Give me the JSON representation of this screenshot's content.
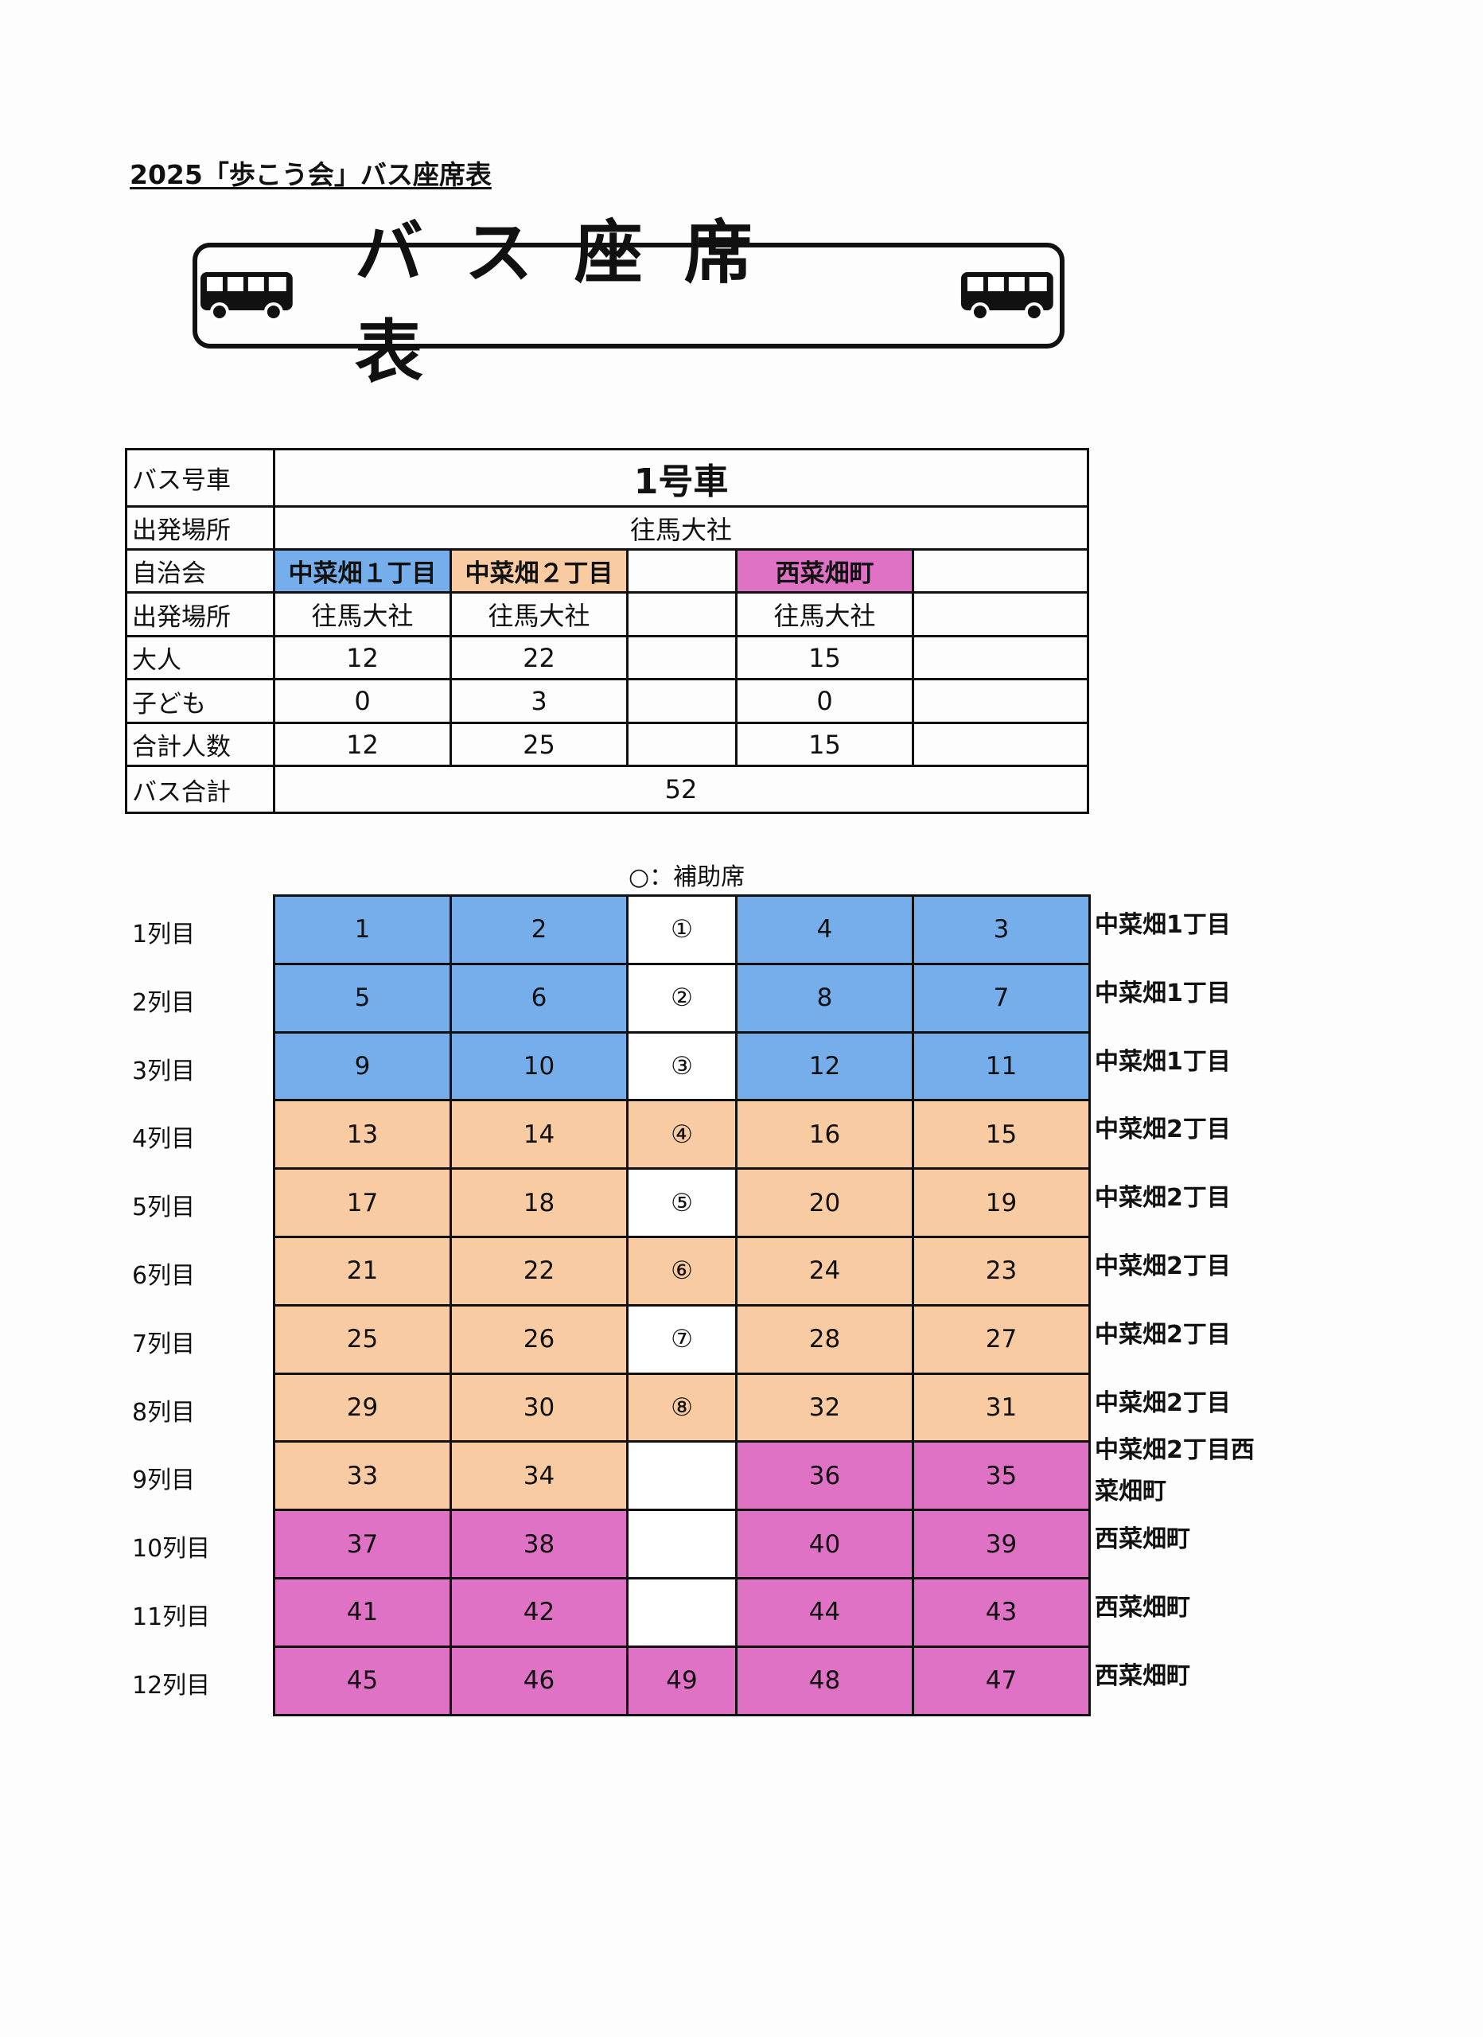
{
  "document_title": "2025「歩こう会」バス座席表",
  "banner": {
    "title": "バス座席表",
    "icons": [
      "bus-icon",
      "bus-icon"
    ]
  },
  "colors": {
    "group1": "#75aeea",
    "group2": "#f8cba3",
    "group3": "#e072c6",
    "aisle_empty": "#ffffff"
  },
  "info_table": {
    "bus_label": "バス号車",
    "bus_value": "1号車",
    "departure_label": "出発場所",
    "departure_value": "往馬大社",
    "assoc_label": "自治会",
    "groups": [
      "中菜畑１丁目",
      "中菜畑２丁目",
      "",
      "西菜畑町",
      ""
    ],
    "group_departure_label": "出発場所",
    "group_departures": [
      "往馬大社",
      "往馬大社",
      "",
      "往馬大社",
      ""
    ],
    "adults_label": "大人",
    "adults": [
      "12",
      "22",
      "",
      "15",
      ""
    ],
    "children_label": "子ども",
    "children": [
      "0",
      "3",
      "",
      "0",
      ""
    ],
    "total_label": "合計人数",
    "totals": [
      "12",
      "25",
      "",
      "15",
      ""
    ],
    "bus_total_label": "バス合計",
    "bus_total": "52"
  },
  "legend": "○：補助席",
  "seat_rows": [
    {
      "label": "1列目",
      "seats": [
        "1",
        "2",
        "①",
        "4",
        "3"
      ],
      "colors": [
        "group1",
        "group1",
        "aisle_empty",
        "group1",
        "group1"
      ],
      "group": "中菜畑1丁目"
    },
    {
      "label": "2列目",
      "seats": [
        "5",
        "6",
        "②",
        "8",
        "7"
      ],
      "colors": [
        "group1",
        "group1",
        "aisle_empty",
        "group1",
        "group1"
      ],
      "group": "中菜畑1丁目"
    },
    {
      "label": "3列目",
      "seats": [
        "9",
        "10",
        "③",
        "12",
        "11"
      ],
      "colors": [
        "group1",
        "group1",
        "aisle_empty",
        "group1",
        "group1"
      ],
      "group": "中菜畑1丁目"
    },
    {
      "label": "4列目",
      "seats": [
        "13",
        "14",
        "④",
        "16",
        "15"
      ],
      "colors": [
        "group2",
        "group2",
        "group2",
        "group2",
        "group2"
      ],
      "group": "中菜畑2丁目"
    },
    {
      "label": "5列目",
      "seats": [
        "17",
        "18",
        "⑤",
        "20",
        "19"
      ],
      "colors": [
        "group2",
        "group2",
        "aisle_empty",
        "group2",
        "group2"
      ],
      "group": "中菜畑2丁目"
    },
    {
      "label": "6列目",
      "seats": [
        "21",
        "22",
        "⑥",
        "24",
        "23"
      ],
      "colors": [
        "group2",
        "group2",
        "group2",
        "group2",
        "group2"
      ],
      "group": "中菜畑2丁目"
    },
    {
      "label": "7列目",
      "seats": [
        "25",
        "26",
        "⑦",
        "28",
        "27"
      ],
      "colors": [
        "group2",
        "group2",
        "aisle_empty",
        "group2",
        "group2"
      ],
      "group": "中菜畑2丁目"
    },
    {
      "label": "8列目",
      "seats": [
        "29",
        "30",
        "⑧",
        "32",
        "31"
      ],
      "colors": [
        "group2",
        "group2",
        "group2",
        "group2",
        "group2"
      ],
      "group": "中菜畑2丁目"
    },
    {
      "label": "9列目",
      "seats": [
        "33",
        "34",
        "",
        "36",
        "35"
      ],
      "colors": [
        "group2",
        "group2",
        "aisle_empty",
        "group3",
        "group3"
      ],
      "group": "中菜畑2丁目西\n菜畑町"
    },
    {
      "label": "10列目",
      "seats": [
        "37",
        "38",
        "",
        "40",
        "39"
      ],
      "colors": [
        "group3",
        "group3",
        "aisle_empty",
        "group3",
        "group3"
      ],
      "group": "西菜畑町"
    },
    {
      "label": "11列目",
      "seats": [
        "41",
        "42",
        "",
        "44",
        "43"
      ],
      "colors": [
        "group3",
        "group3",
        "aisle_empty",
        "group3",
        "group3"
      ],
      "group": "西菜畑町"
    },
    {
      "label": "12列目",
      "seats": [
        "45",
        "46",
        "49",
        "48",
        "47"
      ],
      "colors": [
        "group3",
        "group3",
        "group3",
        "group3",
        "group3"
      ],
      "group": "西菜畑町"
    }
  ]
}
